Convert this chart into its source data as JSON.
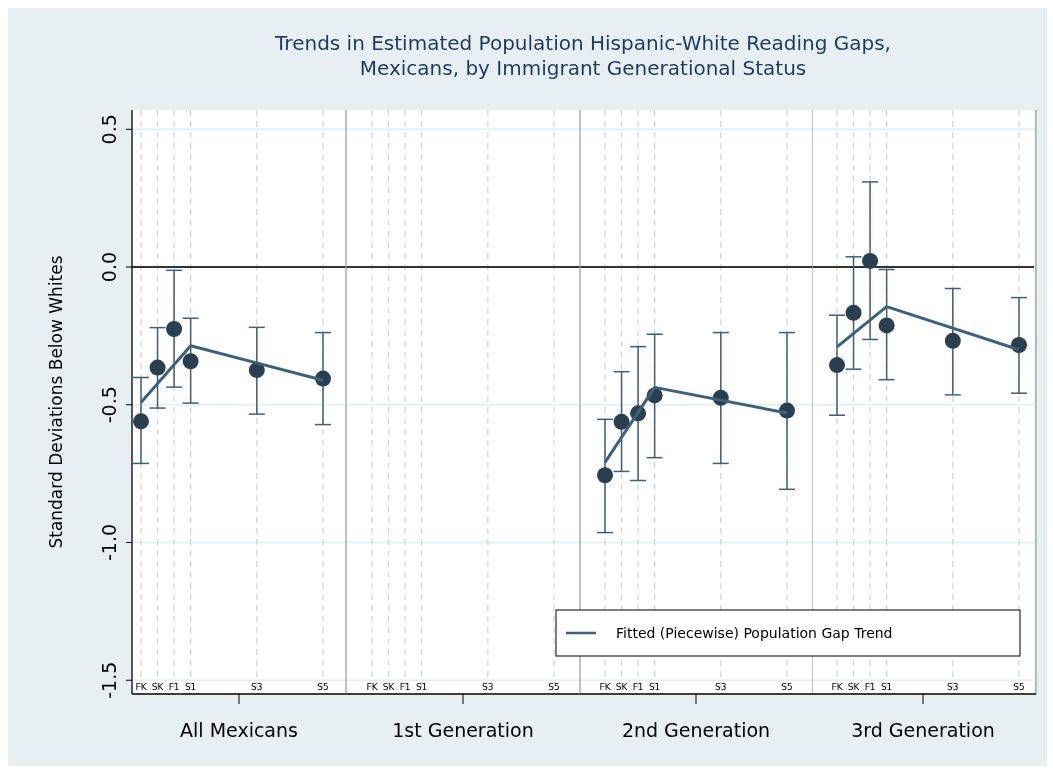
{
  "chart_data": [
    {
      "type": "scatter",
      "title": "Trends in Estimated Population Hispanic-White Reading Gaps,\nMexicans, by Immigrant Generational Status",
      "ylabel": "Standard Deviations Below Whites",
      "xlabel": "All Mexicans",
      "categories": [
        "FK",
        "SK",
        "F1",
        "S1",
        null,
        null,
        null,
        "S3",
        null,
        null,
        null,
        "S5"
      ],
      "ylim": [
        -1.55,
        0.57
      ],
      "yticks": [
        {
          "value": 0.5,
          "label": "0.5"
        },
        {
          "value": 0,
          "label": "0.0"
        },
        {
          "value": -0.5,
          "label": "-0.5"
        },
        {
          "value": -1,
          "label": "-1.0"
        },
        {
          "value": -1.5,
          "label": "-1.5"
        }
      ],
      "grid": true,
      "marker": "circle",
      "ref_lines": [
        {
          "axis": "y",
          "value": 0,
          "color": "#333333"
        }
      ],
      "series": [
        {
          "color": "#2a3f50",
          "values": [
            -0.56,
            -0.365,
            -0.225,
            -0.342,
            null,
            null,
            null,
            -0.374,
            null,
            null,
            null,
            -0.405
          ],
          "errors": [
            [
              -0.713,
              -0.401
            ],
            [
              -0.512,
              -0.22
            ],
            [
              -0.436,
              -0.012
            ],
            [
              -0.494,
              -0.186
            ],
            null,
            null,
            null,
            [
              -0.534,
              -0.219
            ],
            null,
            null,
            null,
            [
              -0.572,
              -0.238
            ]
          ]
        },
        {
          "type": "line",
          "color": "#3d6179",
          "marker": "none",
          "x": [
            "FK",
            "S1",
            "S5"
          ],
          "values": [
            -0.492,
            -0.286,
            -0.411
          ]
        }
      ]
    },
    {
      "type": "scatter",
      "xlabel": "1st Generation",
      "categories": [
        "FK",
        "SK",
        "F1",
        "S1",
        null,
        null,
        null,
        "S3",
        null,
        null,
        null,
        "S5"
      ],
      "ylim": [
        -1.55,
        0.57
      ],
      "yticks": [
        0.5,
        0,
        -0.5,
        -1,
        -1.5
      ],
      "tick_labels": "x",
      "grid": true,
      "ref_lines": [
        {
          "axis": "y",
          "value": 0,
          "color": "#333333"
        }
      ]
    },
    {
      "type": "scatter",
      "xlabel": "2nd Generation",
      "categories": [
        "FK",
        "SK",
        "F1",
        "S1",
        null,
        null,
        null,
        "S3",
        null,
        null,
        null,
        "S5"
      ],
      "ylim": [
        -1.55,
        0.57
      ],
      "yticks": [
        0.5,
        0,
        -0.5,
        -1,
        -1.5
      ],
      "tick_labels": "x",
      "grid": true,
      "marker": "circle",
      "legend": "bottom right",
      "ref_lines": [
        {
          "axis": "y",
          "value": 0,
          "color": "#333333"
        }
      ],
      "series": [
        {
          "color": "#2a3f50",
          "values": [
            -0.756,
            -0.562,
            -0.531,
            -0.466,
            null,
            null,
            null,
            -0.475,
            null,
            null,
            null,
            -0.521
          ],
          "errors": [
            [
              -0.964,
              -0.553
            ],
            [
              -0.742,
              -0.38
            ],
            [
              -0.775,
              -0.289
            ],
            [
              -0.692,
              -0.244
            ],
            null,
            null,
            null,
            [
              -0.713,
              -0.238
            ],
            null,
            null,
            null,
            [
              -0.807,
              -0.238
            ]
          ]
        },
        {
          "type": "line",
          "name": "Fitted (Piecewise) Population Gap Trend",
          "color": "#3d6179",
          "marker": "none",
          "x": [
            "FK",
            "S1",
            "S5"
          ],
          "values": [
            -0.709,
            -0.437,
            -0.53
          ]
        }
      ]
    },
    {
      "type": "scatter",
      "xlabel": "3rd Generation",
      "categories": [
        "FK",
        "SK",
        "F1",
        "S1",
        null,
        null,
        null,
        "S3",
        null,
        null,
        null,
        "S5"
      ],
      "ylim": [
        -1.55,
        0.57
      ],
      "yticks": [
        0.5,
        0,
        -0.5,
        -1,
        -1.5
      ],
      "tick_labels": "x",
      "grid": true,
      "marker": "circle",
      "ref_lines": [
        {
          "axis": "y",
          "value": 0,
          "color": "#333333"
        }
      ],
      "series": [
        {
          "color": "#2a3f50",
          "values": [
            -0.356,
            -0.166,
            0.022,
            -0.212,
            null,
            null,
            null,
            -0.268,
            null,
            null,
            null,
            -0.283
          ],
          "errors": [
            [
              -0.538,
              -0.175
            ],
            [
              -0.371,
              0.037
            ],
            [
              -0.263,
              0.309
            ],
            [
              -0.409,
              -0.009
            ],
            null,
            null,
            null,
            [
              -0.464,
              -0.078
            ],
            null,
            null,
            null,
            [
              -0.458,
              -0.111
            ]
          ]
        },
        {
          "type": "line",
          "color": "#3d6179",
          "marker": "none",
          "x": [
            "FK",
            "S1",
            "S5"
          ],
          "values": [
            -0.29,
            -0.144,
            -0.3
          ]
        }
      ]
    }
  ]
}
